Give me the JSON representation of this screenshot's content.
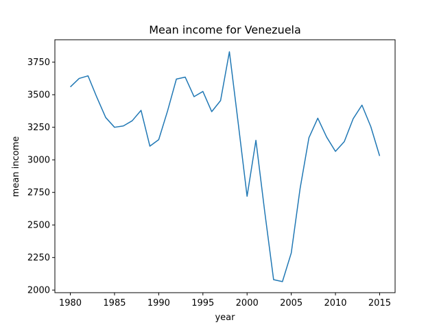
{
  "chart_data": {
    "type": "line",
    "title": "Mean income for Venezuela",
    "xlabel": "year",
    "ylabel": "mean income",
    "xlim": [
      1978.25,
      2016.75
    ],
    "ylim": [
      1980,
      3922
    ],
    "x_ticks": [
      1980,
      1985,
      1990,
      1995,
      2000,
      2005,
      2010,
      2015
    ],
    "y_ticks": [
      2000,
      2250,
      2500,
      2750,
      3000,
      3250,
      3500,
      3750
    ],
    "grid": false,
    "series": [
      {
        "color": "#1f77b4",
        "x": [
          1980,
          1981,
          1982,
          1983,
          1984,
          1985,
          1986,
          1987,
          1988,
          1989,
          1990,
          1991,
          1992,
          1993,
          1994,
          1995,
          1996,
          1997,
          1998,
          1999,
          2000,
          2001,
          2002,
          2003,
          2004,
          2005,
          2006,
          2007,
          2008,
          2009,
          2010,
          2011,
          2012,
          2013,
          2014,
          2015
        ],
        "y": [
          3560,
          3625,
          3645,
          3480,
          3325,
          3250,
          3260,
          3300,
          3380,
          3105,
          3155,
          3375,
          3620,
          3635,
          3485,
          3525,
          3370,
          3455,
          3830,
          3280,
          2720,
          3150,
          2600,
          2080,
          2065,
          2285,
          2780,
          3170,
          3320,
          3175,
          3065,
          3140,
          3315,
          3420,
          3255,
          3030
        ]
      }
    ]
  }
}
